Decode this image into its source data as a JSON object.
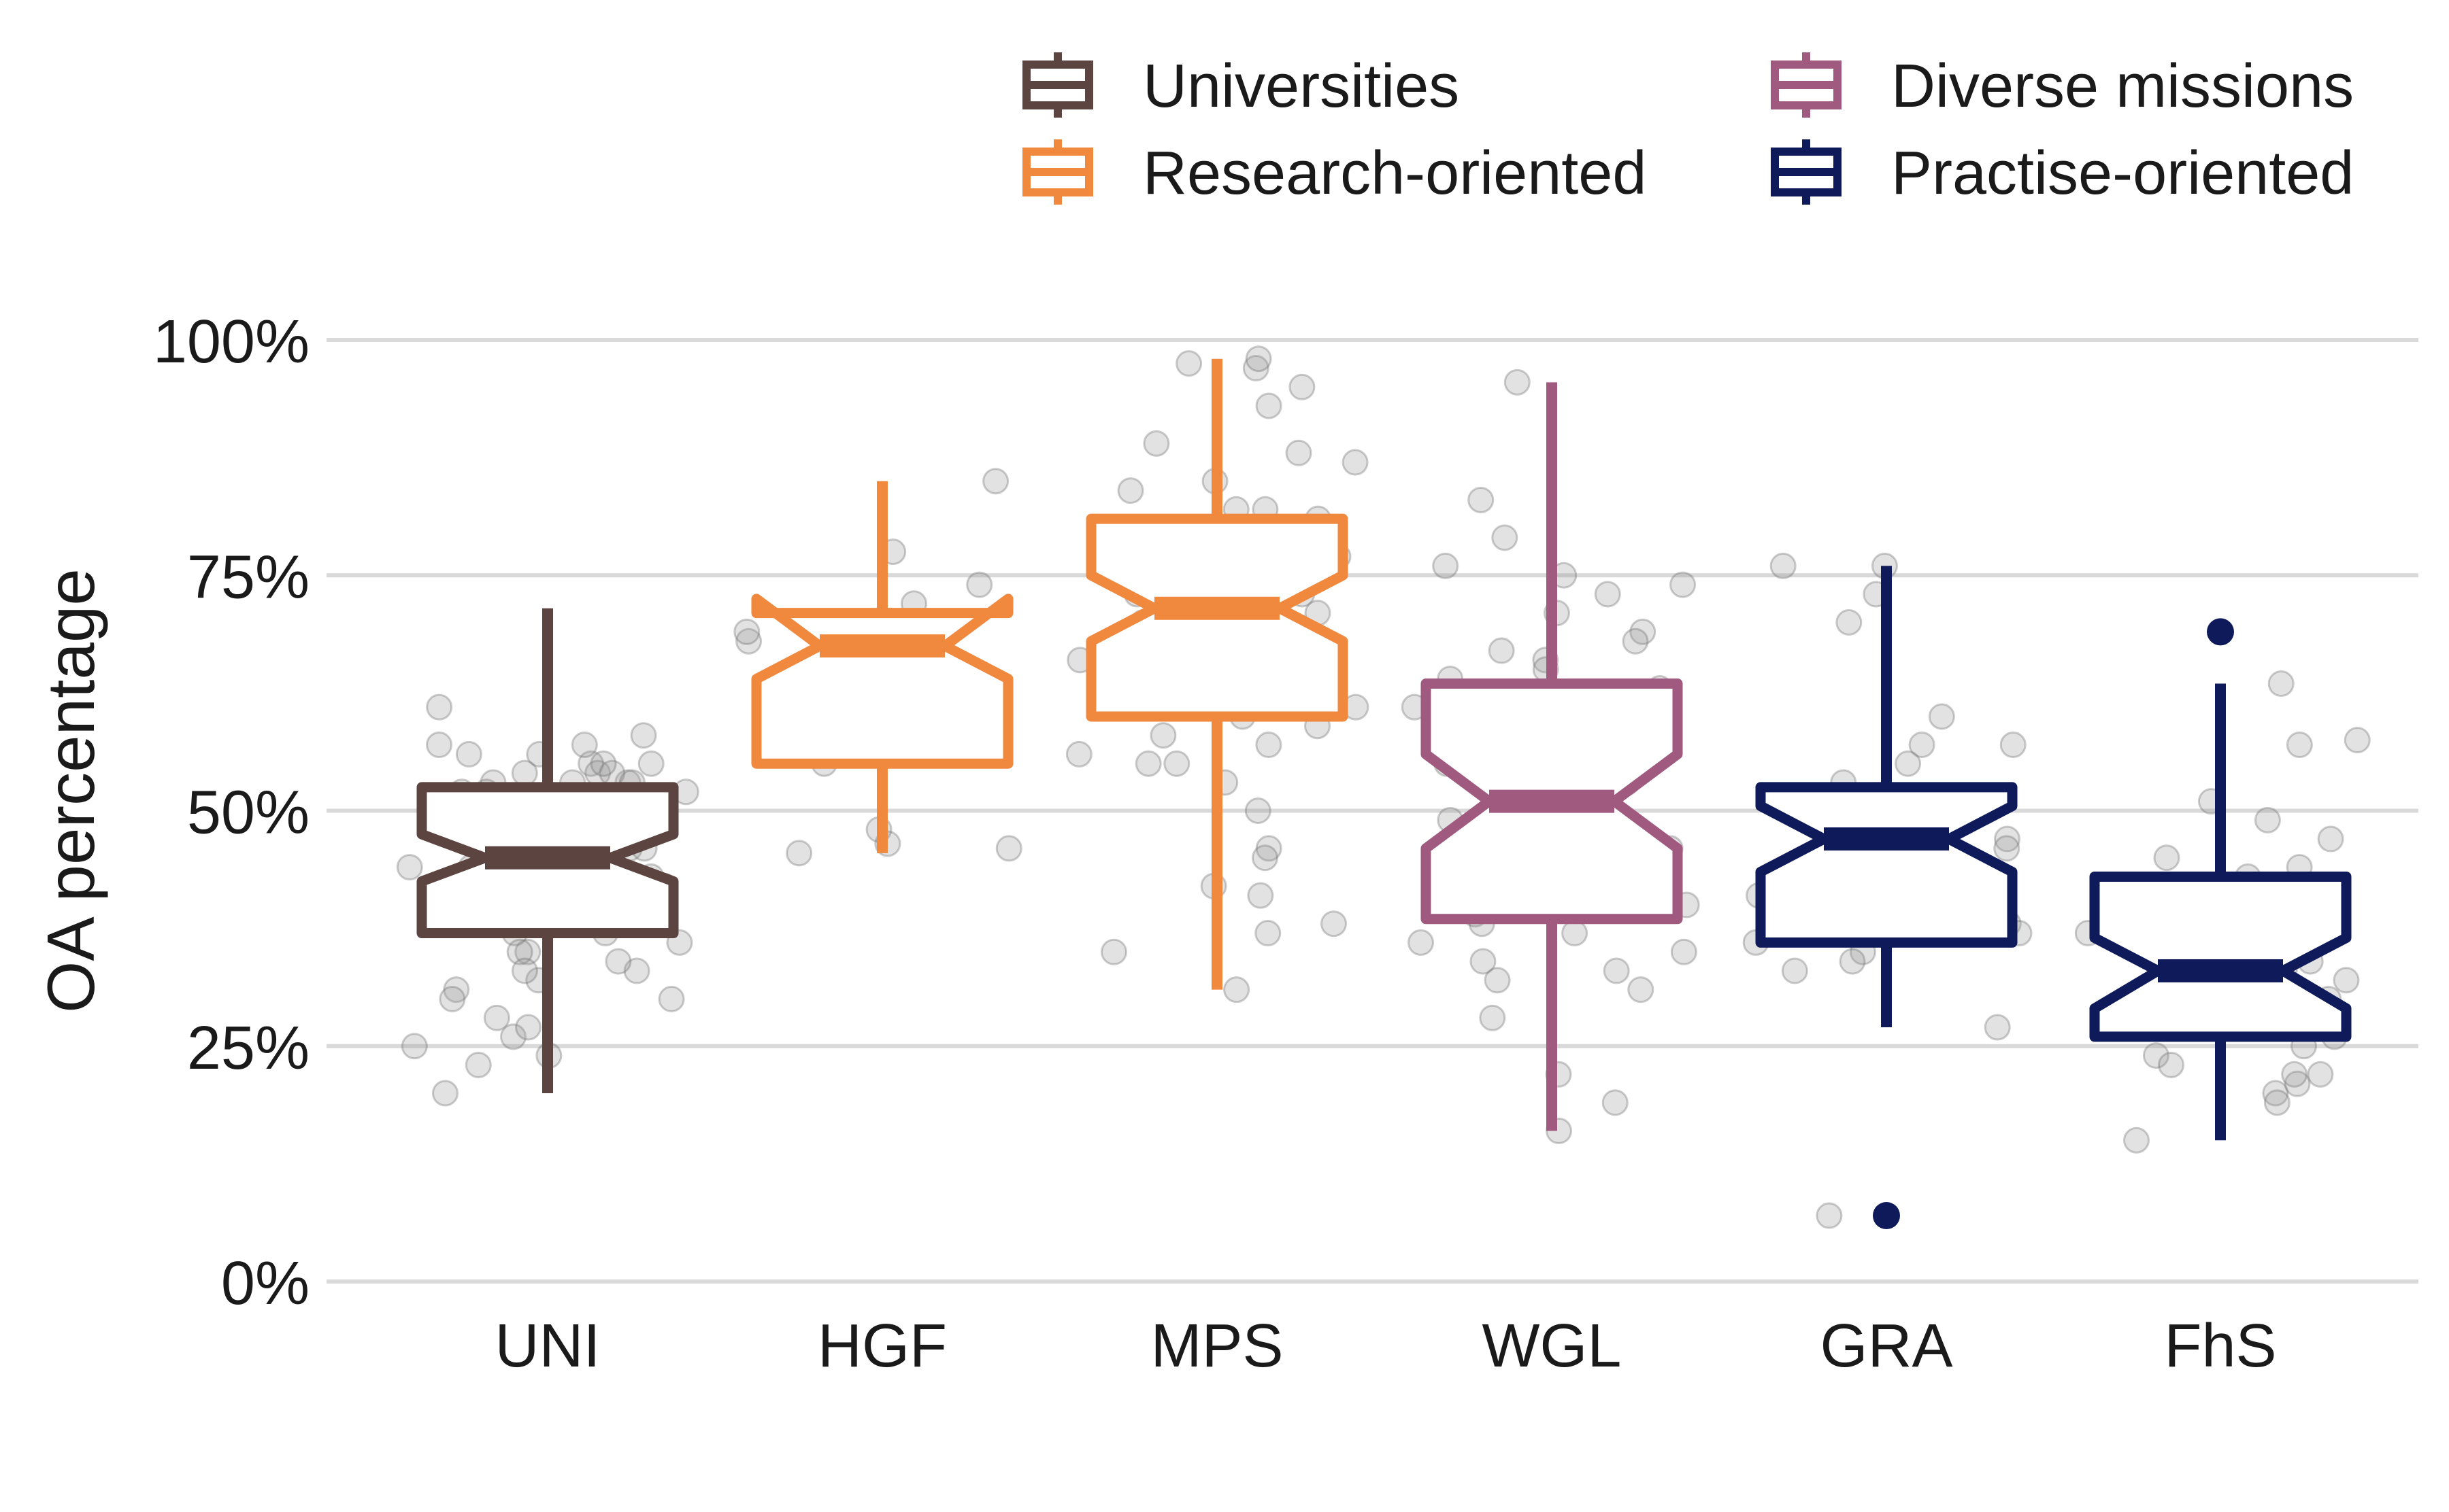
{
  "chart_data": {
    "type": "boxplot",
    "ylabel": "OA percentage",
    "ylim": [
      0,
      100
    ],
    "yticks": [
      0,
      25,
      50,
      75,
      100
    ],
    "ytick_labels": [
      "0%",
      "25%",
      "50%",
      "75%",
      "100%"
    ],
    "grid": "horizontal",
    "notched": true,
    "legend_position": "top-right",
    "legend": [
      {
        "label": "Universities",
        "color": "#5c4440"
      },
      {
        "label": "Diverse missions",
        "color": "#a05a80"
      },
      {
        "label": "Research-oriented",
        "color": "#f0883e"
      },
      {
        "label": "Practise-oriented",
        "color": "#0e1a5a"
      }
    ],
    "categories": [
      "UNI",
      "HGF",
      "MPS",
      "WGL",
      "GRA",
      "FhS"
    ],
    "boxes": [
      {
        "category": "UNI",
        "group": "Universities",
        "color": "#5c4440",
        "whisker_low": 20,
        "q1": 37,
        "median": 45,
        "q3": 52.5,
        "whisker_high": 71.5,
        "notch": [
          42.5,
          47.5
        ],
        "outliers": [],
        "points": [
          55,
          53,
          57,
          52,
          54,
          47,
          49,
          40,
          37,
          50,
          48,
          44,
          46,
          52,
          45,
          51,
          49,
          53,
          55,
          58,
          61,
          56,
          54,
          50,
          45,
          41,
          42,
          43,
          38,
          35,
          33,
          31,
          30,
          28,
          26,
          24,
          36,
          32,
          34,
          44,
          47,
          39,
          42,
          48,
          51,
          46,
          55,
          57,
          53,
          49,
          45,
          43,
          41,
          38,
          37,
          35,
          33,
          30,
          27,
          25,
          23,
          20,
          40,
          44,
          50,
          52,
          54,
          56,
          53,
          48
        ]
      },
      {
        "category": "HGF",
        "group": "Research-oriented",
        "color": "#f0883e",
        "whisker_low": 45.5,
        "q1": 55,
        "median": 67.5,
        "q3": 71,
        "whisker_high": 85,
        "notch": [
          64,
          72.5
        ],
        "outliers": [],
        "points": [
          77.5,
          74,
          72,
          70,
          68,
          67,
          65,
          63,
          59,
          55,
          48,
          46,
          45.5,
          46.5,
          85,
          70,
          69
        ]
      },
      {
        "category": "MPS",
        "group": "Research-oriented",
        "color": "#f0883e",
        "whisker_low": 31,
        "q1": 60,
        "median": 71.5,
        "q3": 81,
        "whisker_high": 98,
        "notch": [
          68,
          75
        ],
        "outliers": [],
        "points": [
          97,
          98,
          97.5,
          95,
          93,
          89,
          88,
          87,
          85,
          84,
          82,
          82,
          81,
          80,
          79,
          78,
          77,
          76,
          75,
          74,
          73,
          72,
          71,
          70,
          69,
          68,
          67,
          66,
          65,
          64,
          63,
          62,
          61,
          60,
          59,
          58,
          56,
          55,
          53,
          50,
          46,
          45,
          42,
          41,
          38,
          37,
          35,
          31,
          73,
          70,
          68,
          62,
          57,
          55
        ]
      },
      {
        "category": "WGL",
        "group": "Diverse missions",
        "color": "#a05a80",
        "whisker_low": 16,
        "q1": 38.5,
        "median": 51,
        "q3": 63.5,
        "whisker_high": 95.5,
        "notch": [
          46,
          56
        ],
        "outliers": [],
        "points": [
          95.5,
          83,
          79,
          76,
          75,
          74,
          73,
          71,
          69,
          68,
          67,
          66,
          65,
          64,
          63,
          62,
          61,
          60,
          59,
          58,
          57,
          56,
          55,
          53,
          52,
          51,
          50,
          48,
          47,
          46,
          45,
          44,
          42,
          41,
          40,
          39,
          38,
          37,
          35,
          34,
          33,
          32,
          31,
          28,
          22,
          19,
          16,
          60,
          58,
          54,
          49,
          43,
          36
        ]
      },
      {
        "category": "GRA",
        "group": "Practise-oriented",
        "color": "#0e1a5a",
        "whisker_low": 27,
        "q1": 36,
        "median": 47,
        "q3": 52.5,
        "whisker_high": 76,
        "notch": [
          43.5,
          50.5
        ],
        "outliers": [
          7
        ],
        "points": [
          76,
          76,
          73,
          70,
          60,
          57,
          55,
          53,
          51,
          50,
          49,
          48,
          47,
          46,
          45,
          44,
          43,
          42,
          41,
          40,
          39,
          38,
          37,
          36,
          35,
          34,
          33,
          27,
          7,
          57
        ]
      },
      {
        "category": "FhS",
        "group": "Practise-oriented",
        "color": "#0e1a5a",
        "whisker_low": 15,
        "q1": 26,
        "median": 33,
        "q3": 43,
        "whisker_high": 63.5,
        "notch": [
          29,
          36.5
        ],
        "outliers": [
          69
        ],
        "points": [
          63.5,
          57.5,
          57,
          51,
          49,
          47,
          45,
          44,
          43,
          42,
          41,
          40,
          39,
          38,
          37,
          36,
          35,
          34,
          33,
          32,
          31,
          30,
          29,
          28,
          27,
          26,
          25,
          24,
          23,
          22,
          21,
          20,
          19,
          15,
          29,
          27,
          22
        ]
      }
    ]
  }
}
